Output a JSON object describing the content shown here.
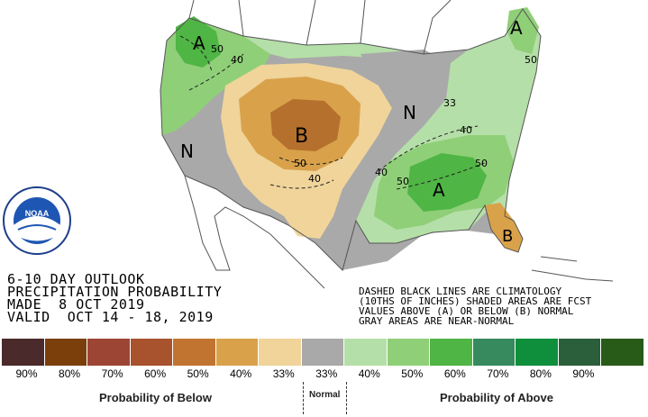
{
  "outlook": {
    "line1": "6-10 DAY OUTLOOK",
    "line2": "PRECIPITATION PROBABILITY",
    "line3": "MADE  8 OCT 2019",
    "line4": "VALID  OCT 14 - 18, 2019"
  },
  "notes": {
    "line1": "DASHED BLACK LINES ARE CLIMATOLOGY",
    "line2": "(10THS OF INCHES) SHADED AREAS ARE FCST",
    "line3": "VALUES ABOVE (A) OR BELOW (B) NORMAL",
    "line4": "GRAY AREAS ARE NEAR-NORMAL"
  },
  "map_labels": {
    "A_northwest": "A",
    "A_northeast": "A",
    "A_southeast": "A",
    "B_plains": "B",
    "B_florida": "B",
    "N_west": "N",
    "N_midwest": "N",
    "c50_nw": "50",
    "c40_nw": "40",
    "c50_plains": "50",
    "c40_plains": "40",
    "c33_ne": "33",
    "c40_east": "40",
    "c40_se": "40",
    "c50_se": "50",
    "c50_se2": "50",
    "c50_ne": "50"
  },
  "logo": {
    "center_text": "NOAA"
  },
  "legend": {
    "colors": [
      "#4a2a2a",
      "#7a3f0a",
      "#9c4535",
      "#a8522e",
      "#c07430",
      "#d9a24a",
      "#f0d49a",
      "#a9a9a9",
      "#b5dfa8",
      "#8fcf78",
      "#4fb544",
      "#368a5e",
      "#0f8e3c",
      "#2b5e3a",
      "#285a18"
    ],
    "labels": [
      "90%",
      "80%",
      "70%",
      "60%",
      "50%",
      "40%",
      "33%",
      "33%",
      "40%",
      "50%",
      "60%",
      "70%",
      "80%",
      "90%",
      ""
    ],
    "below_title": "Probability of Below",
    "normal_title": "Normal",
    "above_title": "Probability of Above"
  }
}
